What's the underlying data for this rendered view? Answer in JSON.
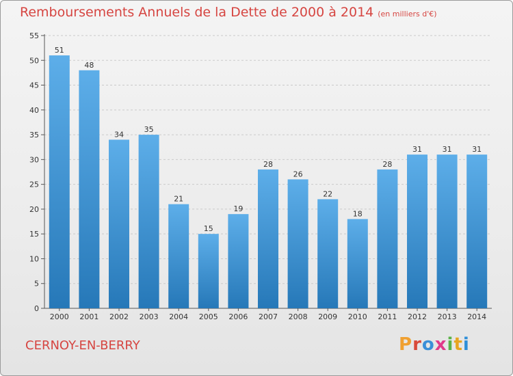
{
  "chart_data": {
    "type": "bar",
    "title": "Remboursements Annuels de la Dette de 2000 à 2014",
    "unit_label": "(en milliers d'€)",
    "categories": [
      "2000",
      "2001",
      "2002",
      "2003",
      "2004",
      "2005",
      "2006",
      "2007",
      "2008",
      "2009",
      "2010",
      "2011",
      "2012",
      "2013",
      "2014"
    ],
    "values": [
      51,
      48,
      34,
      35,
      21,
      15,
      19,
      28,
      26,
      22,
      18,
      28,
      31,
      31,
      31
    ],
    "ylim": [
      0,
      55
    ],
    "yticks": [
      0,
      5,
      10,
      15,
      20,
      25,
      30,
      35,
      40,
      45,
      50,
      55
    ],
    "grid": true,
    "xlabel": "",
    "ylabel": ""
  },
  "footer": {
    "city": "CERNOY-EN-BERRY",
    "logo": "Proxiti"
  },
  "colors": {
    "title": "#d64541",
    "bar_top": "#5daee9",
    "bar_bottom": "#2678b8",
    "grid": "#c9c9c9",
    "logo_letters": [
      "#f0a030",
      "#d94a3a",
      "#3a8fd8",
      "#e03a8a",
      "#5ab348",
      "#e8a520",
      "#2f8fd8"
    ]
  }
}
